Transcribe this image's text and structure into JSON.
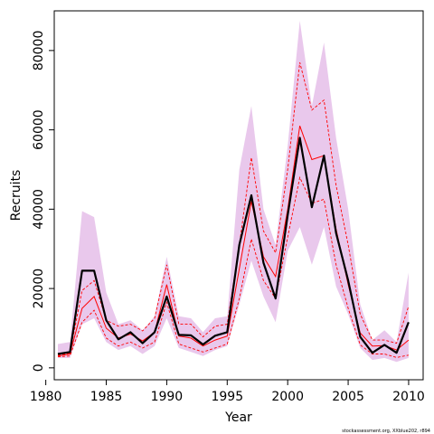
{
  "chart_data": {
    "type": "line",
    "xlabel": "Year",
    "ylabel": "Recruits",
    "xlim": [
      1980.7,
      2011.2
    ],
    "ylim": [
      -3000,
      90000
    ],
    "xticks": [
      1980,
      1985,
      1990,
      1995,
      2000,
      2005,
      2010
    ],
    "yticks": [
      0,
      20000,
      40000,
      60000,
      80000
    ],
    "credit": "stockassessment.org, XXblue202, r894",
    "colors": {
      "band": "#e9c8ec",
      "estimate": "#000000",
      "alt": "#ff0000"
    },
    "x": [
      1981,
      1982,
      1983,
      1984,
      1985,
      1986,
      1987,
      1988,
      1989,
      1990,
      1991,
      1992,
      1993,
      1994,
      1995,
      1996,
      1997,
      1998,
      1999,
      2000,
      2001,
      2002,
      2003,
      2004,
      2005,
      2006,
      2007,
      2008,
      2009,
      2010
    ],
    "series": [
      {
        "role": "band_upper",
        "values": [
          6000,
          6500,
          39500,
          38000,
          19000,
          11000,
          12000,
          9500,
          13000,
          28000,
          13000,
          12500,
          9000,
          12500,
          13000,
          50000,
          66000,
          40000,
          31000,
          56000,
          87500,
          66000,
          82000,
          58000,
          40000,
          16000,
          7000,
          9500,
          6500,
          24000
        ]
      },
      {
        "role": "band_lower",
        "values": [
          2500,
          2500,
          11000,
          12500,
          6500,
          4500,
          5500,
          3500,
          5500,
          12500,
          5000,
          4000,
          3000,
          4500,
          5500,
          16000,
          27000,
          18000,
          11500,
          29500,
          35500,
          26000,
          35500,
          20500,
          13500,
          5000,
          2000,
          2500,
          1500,
          2500
        ]
      },
      {
        "role": "estimate",
        "values": [
          3500,
          4000,
          24500,
          24500,
          12000,
          7200,
          9000,
          6200,
          9000,
          18000,
          8300,
          8200,
          5900,
          8100,
          9000,
          31000,
          43500,
          26500,
          17500,
          38500,
          58000,
          40500,
          53500,
          34000,
          22000,
          7800,
          3800,
          5800,
          3800,
          11500
        ]
      },
      {
        "role": "alt_mid",
        "values": [
          3000,
          3500,
          15000,
          18000,
          10000,
          7500,
          8500,
          6800,
          9000,
          21000,
          8000,
          7500,
          5500,
          7000,
          8000,
          25000,
          42000,
          28000,
          23000,
          40000,
          61000,
          52500,
          53500,
          35000,
          21000,
          8800,
          5500,
          5600,
          4500,
          7000
        ]
      },
      {
        "role": "alt_upper",
        "values": [
          3200,
          3700,
          19500,
          22000,
          12000,
          10500,
          11000,
          9300,
          12500,
          26000,
          11000,
          11000,
          7800,
          10500,
          11000,
          31000,
          53000,
          34500,
          29000,
          50000,
          77000,
          65000,
          67500,
          46000,
          31000,
          13500,
          7000,
          7000,
          6200,
          15500
        ]
      },
      {
        "role": "alt_lower",
        "values": [
          2800,
          3000,
          11500,
          14500,
          7500,
          5500,
          6500,
          5000,
          6500,
          16500,
          6000,
          5000,
          4000,
          5000,
          6000,
          17500,
          32500,
          22000,
          17500,
          33000,
          48000,
          41500,
          42500,
          26000,
          15000,
          5800,
          3500,
          3500,
          2600,
          3200
        ]
      }
    ]
  }
}
